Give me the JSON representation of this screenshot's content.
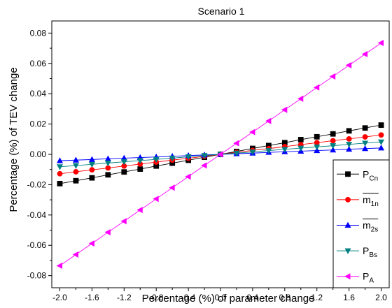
{
  "chart_data": {
    "type": "line",
    "title": "Scenario 1",
    "xlabel": "Percentage (%) of parameter change",
    "ylabel": "Percentage (%) of TEV change",
    "xlim": [
      -2.1,
      2.1
    ],
    "ylim": [
      -0.088,
      0.088
    ],
    "x_ticks": [
      -2.0,
      -1.6,
      -1.2,
      -0.8,
      -0.4,
      0.0,
      0.4,
      0.8,
      1.2,
      1.6,
      2.0
    ],
    "x_tick_labels": [
      "-2.0",
      "-1.6",
      "-1.2",
      "-0.8",
      "-0.4",
      "0.0",
      "0.4",
      "0.8",
      "1.2",
      "1.6",
      "2.0"
    ],
    "y_ticks": [
      -0.08,
      -0.06,
      -0.04,
      -0.02,
      0.0,
      0.02,
      0.04,
      0.06,
      0.08
    ],
    "y_tick_labels": [
      "-0.08",
      "-0.06",
      "-0.04",
      "-0.02",
      "0.00",
      "0.02",
      "0.04",
      "0.06",
      "0.08"
    ],
    "x": [
      -2.0,
      -1.8,
      -1.6,
      -1.4,
      -1.2,
      -1.0,
      -0.8,
      -0.6,
      -0.4,
      -0.2,
      0.0,
      0.2,
      0.4,
      0.6,
      0.8,
      1.0,
      1.2,
      1.4,
      1.6,
      1.8,
      2.0
    ],
    "legend_position": "bottom-right",
    "grid": false,
    "series": [
      {
        "name": "P",
        "sub": "Cn",
        "overline": false,
        "marker": "square",
        "color": "#000000",
        "values": [
          -0.0193,
          -0.0174,
          -0.0155,
          -0.0135,
          -0.0116,
          -0.0097,
          -0.0077,
          -0.0058,
          -0.0039,
          -0.0019,
          0.0,
          0.0019,
          0.0039,
          0.0058,
          0.0077,
          0.0097,
          0.0116,
          0.0135,
          0.0155,
          0.0174,
          0.0193
        ]
      },
      {
        "name": "m",
        "sub": "1n",
        "overline": true,
        "marker": "circle",
        "color": "#ff0000",
        "values": [
          -0.0128,
          -0.0115,
          -0.0102,
          -0.009,
          -0.0077,
          -0.0064,
          -0.0051,
          -0.0038,
          -0.0026,
          -0.0013,
          0.0,
          0.0013,
          0.0026,
          0.0038,
          0.0051,
          0.0064,
          0.0077,
          0.009,
          0.0102,
          0.0115,
          0.0128
        ]
      },
      {
        "name": "m",
        "sub": "2s",
        "overline": true,
        "marker": "triangle-up",
        "color": "#0000ff",
        "values": [
          -0.0042,
          -0.0038,
          -0.0034,
          -0.0029,
          -0.0025,
          -0.0021,
          -0.0017,
          -0.0013,
          -0.0008,
          -0.0004,
          0.0,
          0.0004,
          0.0008,
          0.0013,
          0.0017,
          0.0021,
          0.0025,
          0.0029,
          0.0034,
          0.0038,
          0.0042
        ]
      },
      {
        "name": "P",
        "sub": "Bs",
        "overline": false,
        "marker": "triangle-down",
        "color": "#008080",
        "values": [
          -0.0082,
          -0.0074,
          -0.0066,
          -0.0057,
          -0.0049,
          -0.0041,
          -0.0033,
          -0.0025,
          -0.0016,
          -0.0008,
          0.0,
          0.0008,
          0.0016,
          0.0025,
          0.0033,
          0.0041,
          0.0049,
          0.0057,
          0.0066,
          0.0074,
          0.0082
        ]
      },
      {
        "name": "P",
        "sub": "A",
        "overline": false,
        "marker": "triangle-left",
        "color": "#ff00ff",
        "values": [
          -0.0735,
          -0.0661,
          -0.0588,
          -0.0514,
          -0.0441,
          -0.0367,
          -0.0294,
          -0.022,
          -0.0147,
          -0.0073,
          0.0,
          0.0073,
          0.0147,
          0.022,
          0.0294,
          0.0367,
          0.0441,
          0.0514,
          0.0588,
          0.0661,
          0.0735
        ]
      }
    ]
  }
}
